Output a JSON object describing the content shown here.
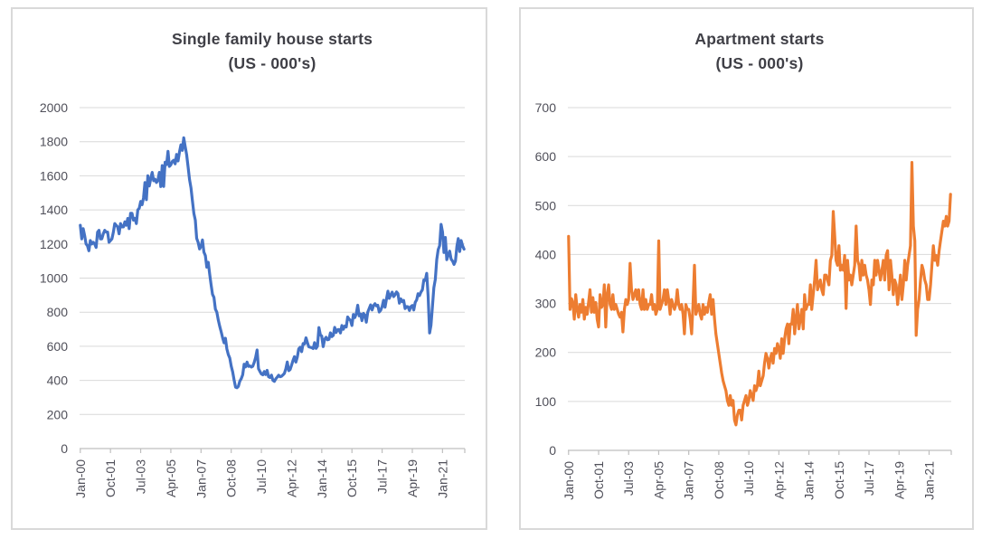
{
  "colors": {
    "series_blue": "#4472C4",
    "series_orange": "#ED7D31",
    "gridline": "#D9D9D9",
    "axis_line": "#BFBFBF",
    "axis_text": "#50505A",
    "title_text": "#3F3F46",
    "panel_border": "#D9D9D9",
    "background": "#FFFFFF"
  },
  "chart_data": [
    {
      "type": "line",
      "title": "Single family house starts",
      "subtitle": "(US - 000's)",
      "xlabel": "",
      "ylabel": "",
      "legend": "none",
      "grid": "horizontal",
      "frequency": "monthly",
      "x_start": "Jan-00",
      "x_tick_labels": [
        "Jan-00",
        "Oct-01",
        "Jul-03",
        "Apr-05",
        "Jan-07",
        "Oct-08",
        "Jul-10",
        "Apr-12",
        "Jan-14",
        "Oct-15",
        "Jul-17",
        "Apr-19",
        "Jan-21"
      ],
      "x_tick_months": [
        0,
        21,
        42,
        63,
        84,
        105,
        126,
        147,
        168,
        189,
        210,
        231,
        252
      ],
      "ylim": [
        0,
        2000
      ],
      "ytick_step": 200,
      "y_tick_labels": [
        "2000",
        "1800",
        "1600",
        "1400",
        "1200",
        "1000",
        "800",
        "600",
        "400",
        "200",
        "0"
      ],
      "series_color": "#4472C4",
      "values": [
        1310,
        1230,
        1290,
        1250,
        1200,
        1190,
        1160,
        1220,
        1200,
        1210,
        1200,
        1180,
        1270,
        1280,
        1230,
        1230,
        1260,
        1280,
        1270,
        1270,
        1210,
        1220,
        1230,
        1270,
        1320,
        1310,
        1300,
        1260,
        1320,
        1300,
        1300,
        1330,
        1310,
        1350,
        1290,
        1380,
        1380,
        1340,
        1350,
        1320,
        1400,
        1410,
        1450,
        1430,
        1470,
        1560,
        1460,
        1600,
        1540,
        1584,
        1620,
        1571,
        1580,
        1561,
        1573,
        1620,
        1537,
        1660,
        1538,
        1680,
        1666,
        1744,
        1655,
        1664,
        1684,
        1691,
        1670,
        1725,
        1687,
        1740,
        1782,
        1749,
        1823,
        1772,
        1724,
        1653,
        1578,
        1530,
        1453,
        1380,
        1340,
        1233,
        1210,
        1171,
        1186,
        1224,
        1152,
        1132,
        1064,
        1093,
        1023,
        963,
        905,
        887,
        818,
        800,
        754,
        717,
        685,
        650,
        620,
        647,
        584,
        551,
        531,
        484,
        450,
        402,
        360,
        357,
        365,
        395,
        410,
        433,
        495,
        479,
        507,
        482,
        485,
        478,
        483,
        505,
        535,
        578,
        468,
        452,
        437,
        433,
        452,
        434,
        459,
        421,
        417,
        431,
        400,
        394,
        409,
        419,
        430,
        421,
        424,
        432,
        441,
        468,
        508,
        457,
        464,
        490,
        516,
        539,
        507,
        537,
        585,
        594,
        568,
        616,
        613,
        650,
        623,
        597,
        594,
        592,
        587,
        621,
        588,
        601,
        710,
        667,
        660,
        598,
        640,
        653,
        638,
        641,
        679,
        657,
        664,
        711,
        681,
        697,
        698,
        678,
        722,
        700,
        719,
        713,
        772,
        759,
        752,
        722,
        787,
        768,
        791,
        841,
        778,
        789,
        750,
        793,
        783,
        741,
        800,
        822,
        843,
        813,
        838,
        850,
        837,
        841,
        801,
        811,
        833,
        870,
        829,
        877,
        923,
        881,
        902,
        918,
        891,
        902,
        919,
        909,
        853,
        878,
        862,
        869,
        821,
        833,
        832,
        810,
        833,
        839,
        813,
        858,
        872,
        908,
        897,
        918,
        931,
        989,
        987,
        1028,
        892,
        678,
        722,
        831,
        944,
        992,
        1108,
        1167,
        1190,
        1315,
        1270,
        1150,
        1238,
        1108,
        1136,
        1158,
        1111,
        1100,
        1080,
        1100,
        1187,
        1232,
        1156,
        1220,
        1190,
        1170
      ]
    },
    {
      "type": "line",
      "title": "Apartment starts",
      "subtitle": "(US - 000's)",
      "xlabel": "",
      "ylabel": "",
      "legend": "none",
      "grid": "horizontal",
      "frequency": "monthly",
      "x_start": "Jan-00",
      "x_tick_labels": [
        "Jan-00",
        "Oct-01",
        "Jul-03",
        "Apr-05",
        "Jan-07",
        "Oct-08",
        "Jul-10",
        "Apr-12",
        "Jan-14",
        "Oct-15",
        "Jul-17",
        "Apr-19",
        "Jan-21"
      ],
      "x_tick_months": [
        0,
        21,
        42,
        63,
        84,
        105,
        126,
        147,
        168,
        189,
        210,
        231,
        252
      ],
      "ylim": [
        0,
        700
      ],
      "ytick_step": 100,
      "y_tick_labels": [
        "700",
        "600",
        "500",
        "400",
        "300",
        "200",
        "100",
        "0"
      ],
      "series_color": "#ED7D31",
      "values": [
        437,
        288,
        310,
        302,
        268,
        318,
        288,
        272,
        298,
        282,
        308,
        268,
        292,
        278,
        302,
        328,
        282,
        312,
        282,
        302,
        268,
        252,
        318,
        292,
        298,
        338,
        252,
        318,
        338,
        298,
        288,
        318,
        288,
        298,
        288,
        278,
        272,
        282,
        242,
        288,
        308,
        298,
        308,
        382,
        328,
        308,
        318,
        328,
        308,
        328,
        298,
        288,
        328,
        288,
        308,
        288,
        298,
        298,
        318,
        288,
        298,
        278,
        288,
        428,
        288,
        298,
        308,
        328,
        298,
        328,
        308,
        278,
        308,
        298,
        288,
        298,
        328,
        298,
        288,
        298,
        278,
        238,
        298,
        288,
        288,
        268,
        238,
        298,
        378,
        278,
        288,
        298,
        278,
        268,
        298,
        278,
        292,
        282,
        302,
        318,
        278,
        308,
        268,
        238,
        218,
        198,
        178,
        158,
        142,
        132,
        122,
        102,
        92,
        112,
        92,
        102,
        62,
        52,
        72,
        82,
        82,
        62,
        92,
        102,
        112,
        92,
        102,
        122,
        112,
        102,
        132,
        122,
        132,
        162,
        132,
        142,
        152,
        178,
        198,
        188,
        168,
        188,
        198,
        178,
        208,
        198,
        218,
        208,
        188,
        228,
        198,
        228,
        248,
        258,
        218,
        258,
        258,
        288,
        238,
        268,
        298,
        248,
        268,
        288,
        248,
        318,
        288,
        298,
        298,
        338,
        288,
        318,
        348,
        388,
        328,
        338,
        348,
        328,
        318,
        358,
        358,
        348,
        338,
        388,
        398,
        488,
        438,
        388,
        378,
        418,
        368,
        378,
        368,
        398,
        290,
        388,
        348,
        358,
        338,
        358,
        378,
        458,
        388,
        378,
        348,
        388,
        358,
        378,
        358,
        348,
        328,
        298,
        348,
        338,
        388,
        358,
        388,
        368,
        348,
        368,
        388,
        348,
        398,
        408,
        328,
        388,
        358,
        318,
        348,
        338,
        298,
        328,
        358,
        308,
        338,
        388,
        348,
        378,
        398,
        418,
        588,
        458,
        428,
        235,
        288,
        308,
        348,
        378,
        368,
        348,
        338,
        308,
        308,
        338,
        378,
        418,
        388,
        398,
        378,
        408,
        428,
        448,
        468,
        458,
        478,
        458,
        468,
        523
      ]
    }
  ]
}
